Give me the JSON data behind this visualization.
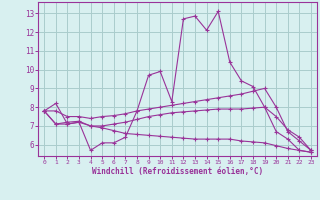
{
  "xlabel": "Windchill (Refroidissement éolien,°C)",
  "bg_color": "#d8f0f0",
  "line_color": "#993399",
  "grid_color": "#aacccc",
  "axis_color": "#993399",
  "tick_label_color": "#993399",
  "x_ticks": [
    0,
    1,
    2,
    3,
    4,
    5,
    6,
    7,
    8,
    9,
    10,
    11,
    12,
    13,
    14,
    15,
    16,
    17,
    18,
    19,
    20,
    21,
    22,
    23
  ],
  "y_ticks": [
    6,
    7,
    8,
    9,
    10,
    11,
    12,
    13
  ],
  "xlim": [
    -0.5,
    23.5
  ],
  "ylim": [
    5.4,
    13.6
  ],
  "series": [
    {
      "x": [
        0,
        1,
        2,
        3,
        4,
        5,
        6,
        7,
        8,
        9,
        10,
        11,
        12,
        13,
        14,
        15,
        16,
        17,
        18,
        19,
        20,
        21,
        22,
        23
      ],
      "y": [
        7.8,
        8.2,
        7.1,
        7.2,
        5.7,
        6.1,
        6.1,
        6.4,
        7.8,
        9.7,
        9.9,
        8.3,
        12.7,
        12.85,
        12.1,
        13.1,
        10.4,
        9.4,
        9.1,
        8.0,
        6.7,
        6.3,
        5.7,
        5.6
      ]
    },
    {
      "x": [
        0,
        1,
        2,
        3,
        4,
        5,
        6,
        7,
        8,
        9,
        10,
        11,
        12,
        13,
        14,
        15,
        16,
        17,
        18,
        19,
        20,
        21,
        22,
        23
      ],
      "y": [
        7.8,
        7.8,
        7.5,
        7.5,
        7.4,
        7.5,
        7.55,
        7.65,
        7.8,
        7.9,
        8.0,
        8.1,
        8.2,
        8.3,
        8.4,
        8.5,
        8.6,
        8.7,
        8.85,
        9.0,
        8.0,
        6.7,
        6.2,
        5.7
      ]
    },
    {
      "x": [
        0,
        1,
        2,
        3,
        4,
        5,
        6,
        7,
        8,
        9,
        10,
        11,
        12,
        13,
        14,
        15,
        16,
        17,
        18,
        19,
        20,
        21,
        22,
        23
      ],
      "y": [
        7.8,
        7.1,
        7.2,
        7.25,
        7.0,
        7.0,
        7.1,
        7.2,
        7.35,
        7.5,
        7.6,
        7.7,
        7.75,
        7.8,
        7.85,
        7.9,
        7.9,
        7.9,
        7.95,
        8.0,
        7.5,
        6.8,
        6.4,
        5.7
      ]
    },
    {
      "x": [
        0,
        1,
        2,
        3,
        4,
        5,
        6,
        7,
        8,
        9,
        10,
        11,
        12,
        13,
        14,
        15,
        16,
        17,
        18,
        19,
        20,
        21,
        22,
        23
      ],
      "y": [
        7.8,
        7.1,
        7.1,
        7.2,
        7.0,
        6.9,
        6.75,
        6.6,
        6.55,
        6.5,
        6.45,
        6.4,
        6.35,
        6.3,
        6.3,
        6.3,
        6.3,
        6.2,
        6.15,
        6.1,
        5.95,
        5.8,
        5.7,
        5.6
      ]
    }
  ]
}
